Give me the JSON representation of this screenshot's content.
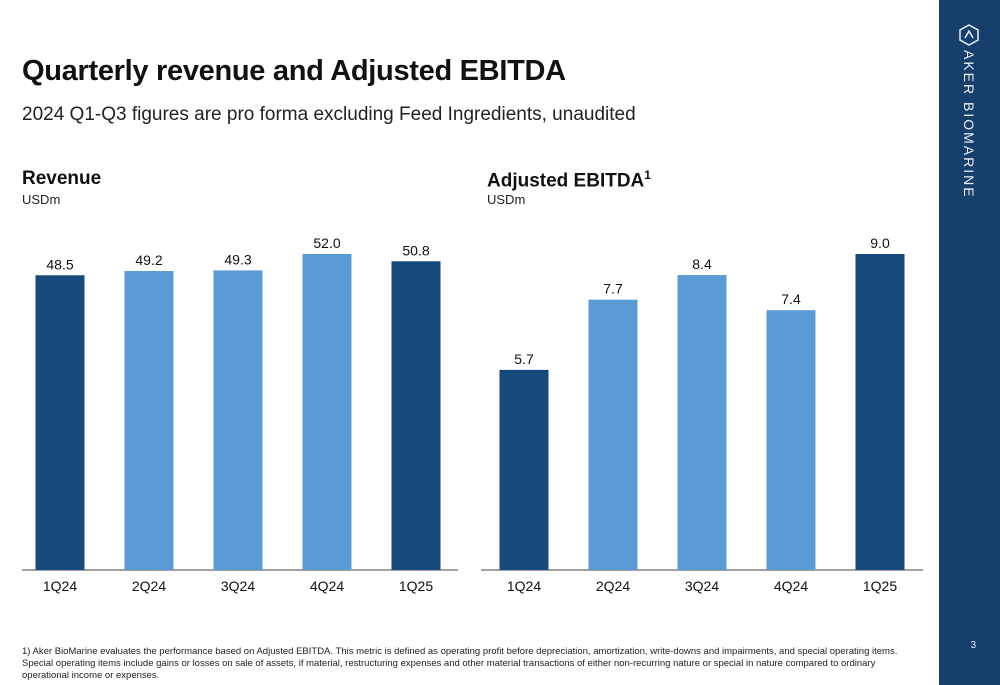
{
  "title": "Quarterly revenue and Adjusted EBITDA",
  "subtitle": "2024 Q1-Q3 figures are pro forma excluding Feed Ingredients, unaudited",
  "chart_data": [
    {
      "type": "bar",
      "title": "Revenue",
      "unit": "USDm",
      "categories": [
        "1Q24",
        "2Q24",
        "3Q24",
        "4Q24",
        "1Q25"
      ],
      "values": [
        48.5,
        49.2,
        49.3,
        52.0,
        50.8
      ],
      "value_labels": [
        "48.5",
        "49.2",
        "49.3",
        "52.0",
        "50.8"
      ],
      "ylim": [
        0,
        52
      ],
      "bar_colors": [
        "#164a7c",
        "#5b9bd5",
        "#5b9bd5",
        "#5b9bd5",
        "#164a7c"
      ]
    },
    {
      "type": "bar",
      "title": "Adjusted EBITDA",
      "title_superscript": "1",
      "unit": "USDm",
      "categories": [
        "1Q24",
        "2Q24",
        "3Q24",
        "4Q24",
        "1Q25"
      ],
      "values": [
        5.7,
        7.7,
        8.4,
        7.4,
        9.0
      ],
      "value_labels": [
        "5.7",
        "7.7",
        "8.4",
        "7.4",
        "9.0"
      ],
      "ylim": [
        0,
        9
      ],
      "bar_colors": [
        "#164a7c",
        "#5b9bd5",
        "#5b9bd5",
        "#5b9bd5",
        "#164a7c"
      ]
    }
  ],
  "footnote": "1) Aker BioMarine evaluates the performance based on Adjusted EBITDA. This metric is defined as operating profit before depreciation, amortization, write-downs and impairments, and special operating items. Special operating items include gains or losses on sale of assets, if material, restructuring expenses and other material transactions of either non-recurring nature or special in nature compared to ordinary operational income or expenses.",
  "brand": "AKER BIOMARINE",
  "page_number": "3"
}
